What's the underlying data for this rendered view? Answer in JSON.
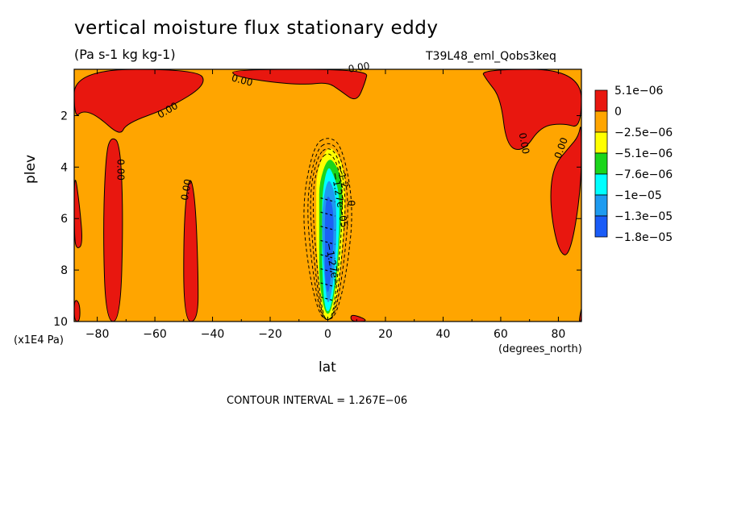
{
  "chart_data": {
    "type": "heatmap",
    "title": "vertical moisture flux stationary eddy",
    "units": "(Pa s-1 kg kg-1)",
    "run_label": "T39L48_eml_Qobs3keq",
    "xlabel": "lat",
    "ylabel": "plev",
    "x_unit": "(degrees_north)",
    "y_unit": "(x1E4 Pa)",
    "xlim": [
      -88,
      88
    ],
    "ylim": [
      10,
      0.2
    ],
    "x_ticks": [
      -80,
      -60,
      -40,
      -20,
      0,
      20,
      40,
      60,
      80
    ],
    "x_tick_labels": [
      "−80",
      "−60",
      "−40",
      "−20",
      "0",
      "20",
      "40",
      "60",
      "80"
    ],
    "y_ticks": [
      2,
      4,
      6,
      8,
      10
    ],
    "y_tick_labels": [
      "2",
      "4",
      "6",
      "8",
      "10"
    ],
    "contour_interval": "CONTOUR INTERVAL = 1.267E−06",
    "legend": [
      {
        "label": "5.1e−06",
        "color": "#e8170f"
      },
      {
        "label": "0",
        "color": "#ffa500"
      },
      {
        "label": "−2.5e−06",
        "color": "#ffff00"
      },
      {
        "label": "−5.1e−06",
        "color": "#1bd51b"
      },
      {
        "label": "−7.6e−06",
        "color": "#00ffff"
      },
      {
        "label": "−1e−05",
        "color": "#1e9bf0"
      },
      {
        "label": "−1.3e−05",
        "color": "#1c62f5"
      },
      {
        "label": "−1.8e−05",
        "color": ""
      }
    ],
    "background_color": "#ffa500",
    "positive_regions": [
      {
        "name": "upper-left",
        "points": [
          [
            -88,
            0.2
          ],
          [
            -45,
            0.2
          ],
          [
            -42,
            0.8
          ],
          [
            -55,
            1.7
          ],
          [
            -70,
            2.3
          ],
          [
            -72,
            2.8
          ],
          [
            -80,
            2.0
          ],
          [
            -85,
            1.8
          ],
          [
            -88,
            2.1
          ]
        ]
      },
      {
        "name": "upper-center",
        "points": [
          [
            -33,
            0.2
          ],
          [
            14,
            0.2
          ],
          [
            13,
            0.7
          ],
          [
            10,
            1.5
          ],
          [
            4,
            1.0
          ],
          [
            0,
            0.7
          ],
          [
            -8,
            0.8
          ],
          [
            -20,
            0.7
          ],
          [
            -33,
            0.45
          ]
        ]
      },
      {
        "name": "upper-right",
        "points": [
          [
            53,
            0.2
          ],
          [
            88,
            0.2
          ],
          [
            88,
            2.5
          ],
          [
            82,
            2.3
          ],
          [
            74,
            2.4
          ],
          [
            68,
            3.4
          ],
          [
            62,
            3.2
          ],
          [
            60,
            1.3
          ],
          [
            55,
            0.6
          ]
        ]
      },
      {
        "name": "right-tongue",
        "points": [
          [
            88,
            2.2
          ],
          [
            87,
            2.8
          ],
          [
            84,
            3.2
          ],
          [
            78,
            4.0
          ],
          [
            77,
            5.5
          ],
          [
            80,
            7.3
          ],
          [
            84,
            7.5
          ],
          [
            88,
            4.8
          ]
        ]
      },
      {
        "name": "left-strip",
        "points": [
          [
            -88,
            4.0
          ],
          [
            -86,
            5.6
          ],
          [
            -85,
            7.0
          ],
          [
            -87,
            7.2
          ],
          [
            -88,
            6.8
          ]
        ]
      },
      {
        "name": "left-bottom",
        "points": [
          [
            -88,
            9.1
          ],
          [
            -86,
            9.3
          ],
          [
            -86,
            10
          ],
          [
            -88,
            10
          ]
        ]
      },
      {
        "name": "column-75",
        "points": [
          [
            -75,
            2.8
          ],
          [
            -72,
            3.1
          ],
          [
            -71,
            6.0
          ],
          [
            -72,
            10
          ],
          [
            -77,
            10
          ],
          [
            -78,
            6.5
          ],
          [
            -77,
            3.4
          ]
        ]
      },
      {
        "name": "column-48",
        "points": [
          [
            -48,
            4.2
          ],
          [
            -46,
            5.2
          ],
          [
            -45,
            8.0
          ],
          [
            -45,
            10
          ],
          [
            -50,
            10
          ],
          [
            -50,
            6.0
          ]
        ]
      },
      {
        "name": "bottom-center",
        "points": [
          [
            8,
            9.7
          ],
          [
            13,
            9.9
          ],
          [
            13,
            10
          ],
          [
            8,
            10
          ]
        ]
      },
      {
        "name": "bottom-right",
        "points": [
          [
            89,
            9.0
          ],
          [
            88,
            10
          ],
          [
            87,
            10
          ]
        ]
      }
    ],
    "negative_plume": [
      {
        "color": "#ffff00",
        "points": [
          [
            0,
            3.2
          ],
          [
            3,
            3.4
          ],
          [
            5,
            3.9
          ],
          [
            6,
            4.5
          ],
          [
            6,
            5.5
          ],
          [
            5,
            7.0
          ],
          [
            4,
            8.5
          ],
          [
            2,
            9.8
          ],
          [
            0,
            10
          ],
          [
            -2,
            9.8
          ],
          [
            -3,
            8.5
          ],
          [
            -4,
            7.0
          ],
          [
            -4,
            5.5
          ],
          [
            -4,
            4.5
          ],
          [
            -3,
            3.9
          ]
        ]
      },
      {
        "color": "#1bd51b",
        "points": [
          [
            0,
            3.6
          ],
          [
            3,
            3.9
          ],
          [
            5,
            4.6
          ],
          [
            5,
            5.5
          ],
          [
            4,
            7.0
          ],
          [
            3,
            8.5
          ],
          [
            1,
            9.7
          ],
          [
            -1,
            9.7
          ],
          [
            -3,
            8.5
          ],
          [
            -3,
            7.0
          ],
          [
            -3,
            5.5
          ],
          [
            -3,
            4.6
          ]
        ]
      },
      {
        "color": "#00ffff",
        "points": [
          [
            0,
            3.9
          ],
          [
            2,
            4.3
          ],
          [
            4,
            5.0
          ],
          [
            4,
            6.5
          ],
          [
            3,
            8.0
          ],
          [
            1,
            9.6
          ],
          [
            -1,
            9.6
          ],
          [
            -2,
            8.0
          ],
          [
            -2,
            6.5
          ],
          [
            -2,
            5.0
          ]
        ]
      },
      {
        "color": "#1e9bf0",
        "points": [
          [
            0,
            4.4
          ],
          [
            2,
            4.8
          ],
          [
            3,
            5.5
          ],
          [
            3,
            7.0
          ],
          [
            2,
            8.5
          ],
          [
            0,
            9.5
          ],
          [
            -1,
            8.5
          ],
          [
            -2,
            7.0
          ],
          [
            -2,
            5.5
          ]
        ]
      },
      {
        "color": "#1c62f5",
        "points": [
          [
            0,
            5.0
          ],
          [
            2,
            5.6
          ],
          [
            2,
            7.0
          ],
          [
            1,
            8.4
          ],
          [
            0,
            9.0
          ],
          [
            -1,
            8.4
          ],
          [
            -1,
            7.0
          ],
          [
            -1,
            5.6
          ]
        ]
      }
    ],
    "dashed_contours": [
      {
        "lat_half_width": 9,
        "top": 2.8,
        "bottom": 10,
        "widest": 5.5
      },
      {
        "lat_half_width": 7.5,
        "top": 3.0,
        "bottom": 10,
        "widest": 5.3
      },
      {
        "lat_half_width": 6.5,
        "top": 3.2,
        "bottom": 10,
        "widest": 5.1
      },
      {
        "lat_half_width": 5.5,
        "top": 3.4,
        "bottom": 10,
        "widest": 5.0
      }
    ],
    "contour_labels": [
      {
        "text": "0.00",
        "lat": -55,
        "plev": 1.9,
        "angle": -30
      },
      {
        "text": "0.00",
        "lat": -30,
        "plev": 0.75,
        "angle": 15
      },
      {
        "text": "0.00",
        "lat": 11,
        "plev": 0.25,
        "angle": -10
      },
      {
        "text": "0.00",
        "lat": -73,
        "plev": 4.1,
        "angle": 90
      },
      {
        "text": "0.00",
        "lat": -48,
        "plev": 4.9,
        "angle": -80
      },
      {
        "text": "0.00",
        "lat": 67,
        "plev": 3.1,
        "angle": 80
      },
      {
        "text": "0.00",
        "lat": 82,
        "plev": 3.3,
        "angle": -70
      },
      {
        "text": "0",
        "lat": 7,
        "plev": 5.4,
        "angle": 90
      },
      {
        "text": "−1.2",
        "lat": 4,
        "plev": 4.4,
        "angle": 75
      },
      {
        "text": "−1.27e−05",
        "lat": 3,
        "plev": 5.3,
        "angle": 80
      },
      {
        "text": "−1.27e−",
        "lat": 0.5,
        "plev": 7.8,
        "angle": 80
      }
    ]
  }
}
